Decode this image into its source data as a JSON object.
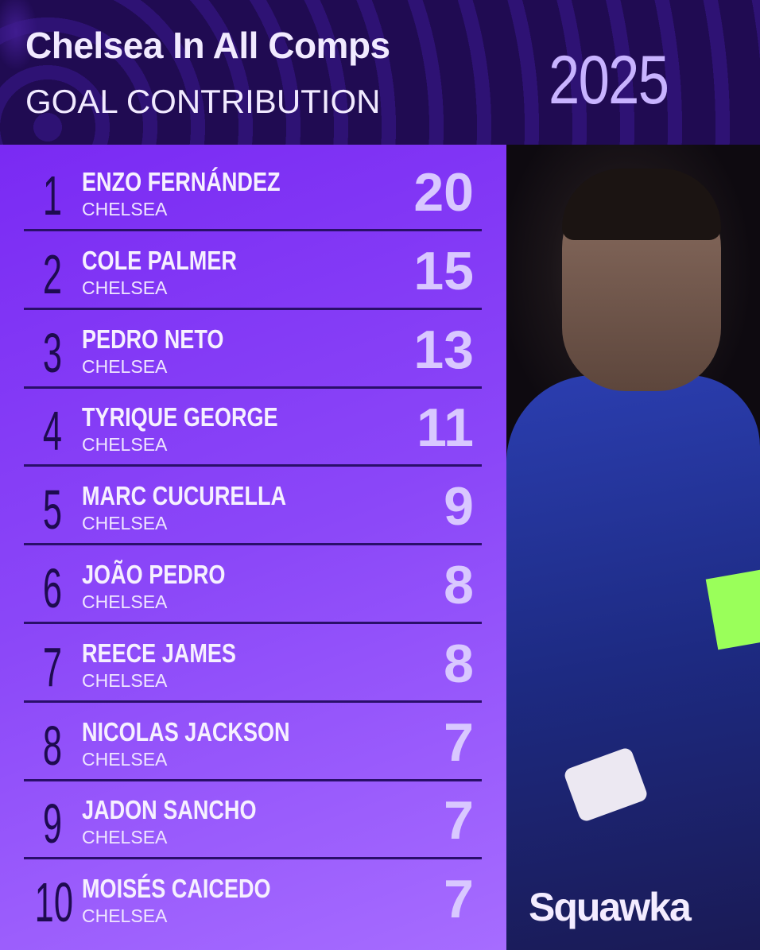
{
  "header": {
    "title": "Chelsea In All Comps",
    "subtitle": "GOAL CONTRIBUTION",
    "year": "2025"
  },
  "colors": {
    "header_bg": "#200b52",
    "list_start": "#7a2af3",
    "list_end": "#a66cff",
    "rank": "#1e0b50",
    "value": "#d9c8ff"
  },
  "rows": [
    {
      "rank": "1",
      "name": "ENZO FERNÁNDEZ",
      "club": "CHELSEA",
      "value": "20"
    },
    {
      "rank": "2",
      "name": "COLE PALMER",
      "club": "CHELSEA",
      "value": "15"
    },
    {
      "rank": "3",
      "name": "PEDRO NETO",
      "club": "CHELSEA",
      "value": "13"
    },
    {
      "rank": "4",
      "name": "TYRIQUE GEORGE",
      "club": "CHELSEA",
      "value": "11"
    },
    {
      "rank": "5",
      "name": "MARC CUCURELLA",
      "club": "CHELSEA",
      "value": "9"
    },
    {
      "rank": "6",
      "name": "JOÃO PEDRO",
      "club": "CHELSEA",
      "value": "8"
    },
    {
      "rank": "7",
      "name": "REECE JAMES",
      "club": "CHELSEA",
      "value": "8"
    },
    {
      "rank": "8",
      "name": "NICOLAS JACKSON",
      "club": "CHELSEA",
      "value": "7"
    },
    {
      "rank": "9",
      "name": "JADON SANCHO",
      "club": "CHELSEA",
      "value": "7"
    },
    {
      "rank": "10",
      "name": "MOISÉS CAICEDO",
      "club": "CHELSEA",
      "value": "7"
    }
  ],
  "photo": {
    "subject": "player-celebrating"
  },
  "brand": {
    "logo": "Squawka"
  }
}
